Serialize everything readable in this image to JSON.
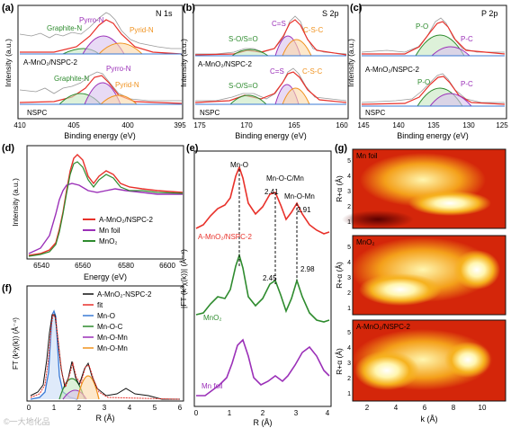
{
  "panels": {
    "a": {
      "tag": "(a)",
      "title": "N 1s",
      "xlabel": "Binding energy (eV)",
      "ylabel": "Intensity (a.u.)",
      "xticks": [
        "410",
        "405",
        "400",
        "395"
      ],
      "top": {
        "sample": "A-MnO₂/NSPC-2",
        "peaks": [
          "Pyrro-N",
          "Graphite-N",
          "Pyrid-N"
        ]
      },
      "bottom": {
        "sample": "NSPC",
        "peaks": [
          "Pyrro-N",
          "Graphite-N",
          "Pyrid-N"
        ]
      }
    },
    "b": {
      "tag": "(b)",
      "title": "S 2p",
      "xlabel": "Binding energy (eV)",
      "ylabel": "Intensity (a.u.)",
      "xticks": [
        "175",
        "170",
        "165",
        "160"
      ],
      "top": {
        "sample": "A-MnO₂/NSPC-2",
        "peaks": [
          "C=S",
          "C-S-C",
          "S-O/S=O"
        ]
      },
      "bottom": {
        "sample": "NSPC",
        "peaks": [
          "C=S",
          "C-S-C",
          "S-O/S=O"
        ]
      }
    },
    "c": {
      "tag": "(c)",
      "title": "P 2p",
      "xlabel": "Binding energy (eV)",
      "ylabel": "Intensity (a.u.)",
      "xticks": [
        "145",
        "140",
        "135",
        "130",
        "125"
      ],
      "top": {
        "sample": "A-MnO₂/NSPC-2",
        "peaks": [
          "P-O",
          "P-C"
        ]
      },
      "bottom": {
        "sample": "NSPC",
        "peaks": [
          "P-O",
          "P-C"
        ]
      }
    },
    "d": {
      "tag": "(d)",
      "xlabel": "Energy (eV)",
      "ylabel": "Intensity (a.u.)",
      "xticks": [
        "6540",
        "6560",
        "6580",
        "6600"
      ],
      "legend": [
        "A-MnO₂/NSPC-2",
        "Mn foil",
        "MnO₂"
      ]
    },
    "e": {
      "tag": "(e)",
      "xlabel": "R (Å)",
      "ylabel": "|FT (k³χ(k))| (Å⁻⁴)",
      "xticks": [
        "0",
        "1",
        "2",
        "3",
        "4"
      ],
      "annotations": [
        "Mn-O",
        "Mn-O-C/Mn",
        "Mn-O-Mn",
        "2.41",
        "2.91",
        "2.45",
        "2.98"
      ],
      "traces": [
        "A-MnO₂/NSPC-2",
        "MnO₂",
        "Mn foil"
      ]
    },
    "f": {
      "tag": "(f)",
      "xlabel": "R (Å)",
      "ylabel": "FT (k³χ(k)) (Å⁻⁴)",
      "xticks": [
        "0",
        "1",
        "2",
        "3",
        "4",
        "5",
        "6"
      ],
      "legend": [
        "A-MnO₂-NSPC-2",
        "fit",
        "Mn-O",
        "Mn-O-C",
        "Mn-O-Mn",
        "Mn-O-Mn"
      ]
    },
    "g": {
      "tag": "(g)",
      "xlabel": "k (Å)",
      "ylabel": "R+α (Å)",
      "xticks": [
        "2",
        "4",
        "6",
        "8",
        "10"
      ],
      "yticks": [
        "1",
        "2",
        "3",
        "4",
        "5"
      ],
      "maps": [
        "Mn foil",
        "MnO₂",
        "A-MnO₂/NSPC-2"
      ]
    }
  },
  "watermark": "©一大地化品",
  "colors": {
    "red": "#e8312a",
    "green": "#2e8b2e",
    "purple": "#9b30b8",
    "blue": "#3a7ad6",
    "orange": "#f0921e",
    "grey": "#8c8c8c",
    "black": "#111111"
  }
}
